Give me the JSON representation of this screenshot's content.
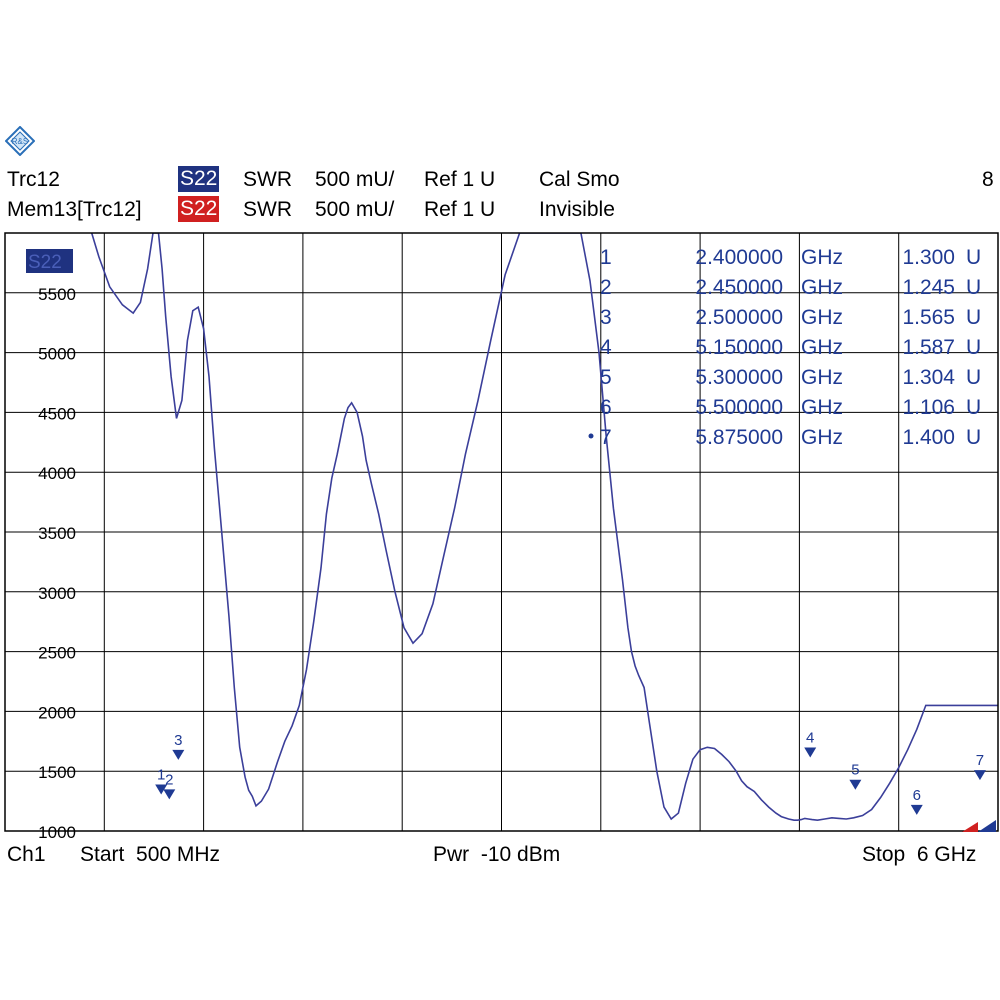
{
  "header": {
    "trace_name": "Trc12",
    "trace_tag": "S22",
    "trace_format": "SWR",
    "trace_scale": "500 mU/",
    "trace_ref": "Ref 1 U",
    "trace_status": "Cal Smo",
    "channel_count": "8",
    "mem_name": "Mem13[Trc12]",
    "mem_tag": "S22",
    "mem_format": "SWR",
    "mem_scale": "500 mU/",
    "mem_ref": "Ref 1 U",
    "mem_status": "Invisible"
  },
  "footer": {
    "channel": "Ch1",
    "start": "Start  500 MHz",
    "power": "Pwr  -10 dBm",
    "stop": "Stop  6 GHz"
  },
  "plot_tag": "S22",
  "colors": {
    "trace": "#3b3f9a",
    "marker": "#1f3a93",
    "tag_blue": "#1f3280",
    "tag_red": "#d02020",
    "grid": "#000000"
  },
  "logo_icon": "rohde-schwarz-logo-icon",
  "chart_data": {
    "type": "line",
    "x_unit": "GHz",
    "xlim": [
      0.5,
      6.0
    ],
    "ylim": [
      1000,
      6000
    ],
    "yticks": [
      {
        "value": 1000,
        "label": "1000"
      },
      {
        "value": 1500,
        "label": "1500"
      },
      {
        "value": 2000,
        "label": "2000"
      },
      {
        "value": 2500,
        "label": "2500"
      },
      {
        "value": 3000,
        "label": "3000"
      },
      {
        "value": 3500,
        "label": "3500"
      },
      {
        "value": 4000,
        "label": "4000"
      },
      {
        "value": 4500,
        "label": "4500"
      },
      {
        "value": 5000,
        "label": "5000"
      },
      {
        "value": 5500,
        "label": "5500"
      }
    ],
    "grid": true,
    "series": [
      {
        "x": [
          0.98,
          1.02,
          1.08,
          1.15,
          1.21,
          1.25,
          1.29,
          1.32,
          1.35,
          1.37,
          1.39,
          1.42,
          1.45,
          1.48,
          1.51,
          1.54,
          1.57,
          1.6,
          1.63,
          1.66,
          1.7,
          1.74,
          1.77,
          1.8,
          1.83,
          1.85,
          1.87,
          1.89,
          1.92,
          1.96,
          2.01,
          2.05,
          2.09,
          2.13,
          2.17,
          2.21,
          2.25,
          2.28,
          2.31,
          2.34,
          2.36,
          2.38,
          2.4,
          2.42,
          2.45,
          2.48,
          2.5,
          2.53,
          2.57,
          2.61,
          2.66,
          2.71,
          2.76,
          2.81,
          2.87,
          2.93,
          2.99,
          3.05,
          3.12,
          3.19,
          3.27,
          3.35,
          3.43,
          3.5,
          3.57,
          3.63,
          3.69,
          3.74,
          3.79,
          3.83,
          3.87,
          3.92,
          3.95,
          3.97,
          3.99,
          4.01,
          4.04,
          4.07,
          4.11,
          4.15,
          4.19,
          4.23,
          4.27,
          4.31,
          4.35,
          4.39,
          4.43,
          4.47,
          4.51,
          4.55,
          4.58,
          4.61,
          4.65,
          4.69,
          4.73,
          4.77,
          4.8,
          4.84,
          4.87,
          4.89,
          4.91,
          4.93,
          4.95,
          4.97,
          5.0,
          5.04,
          5.08,
          5.12,
          5.16,
          5.2,
          5.25,
          5.3,
          5.35,
          5.4,
          5.45,
          5.5,
          5.55,
          5.6,
          5.65,
          5.7,
          5.75,
          5.8,
          5.84,
          5.88,
          5.92,
          5.96,
          6.0
        ],
        "values": [
          6000,
          5800,
          5550,
          5400,
          5330,
          5420,
          5700,
          6000,
          6000,
          5700,
          5300,
          4800,
          4450,
          4600,
          5100,
          5350,
          5380,
          5200,
          4800,
          4200,
          3500,
          2800,
          2200,
          1700,
          1450,
          1340,
          1290,
          1210,
          1250,
          1350,
          1580,
          1750,
          1880,
          2050,
          2350,
          2750,
          3200,
          3650,
          3950,
          4150,
          4300,
          4450,
          4540,
          4580,
          4500,
          4300,
          4100,
          3900,
          3650,
          3350,
          3000,
          2700,
          2570,
          2650,
          2900,
          3300,
          3700,
          4150,
          4600,
          5100,
          5650,
          6000,
          6000,
          6000,
          6000,
          6000,
          6000,
          5600,
          5000,
          4300,
          3700,
          3100,
          2700,
          2500,
          2380,
          2300,
          2200,
          1900,
          1500,
          1200,
          1100,
          1150,
          1400,
          1600,
          1680,
          1700,
          1690,
          1640,
          1580,
          1500,
          1420,
          1370,
          1330,
          1260,
          1200,
          1150,
          1120,
          1100,
          1090,
          1090,
          1095,
          1105,
          1100,
          1095,
          1090,
          1100,
          1110,
          1105,
          1100,
          1110,
          1130,
          1180,
          1280,
          1400,
          1530,
          1680,
          1850,
          2050,
          2050,
          2050,
          2050,
          2050,
          2050,
          2050,
          2050,
          2050,
          2050
        ]
      }
    ],
    "markers": [
      {
        "id": "1",
        "freq": "2.400000",
        "unit": "GHz",
        "value": "1.300",
        "value_unit": "U",
        "x": 1.365,
        "y": 1330
      },
      {
        "id": "2",
        "freq": "2.450000",
        "unit": "GHz",
        "value": "1.245",
        "value_unit": "U",
        "x": 1.41,
        "y": 1290
      },
      {
        "id": "3",
        "freq": "2.500000",
        "unit": "GHz",
        "value": "1.565",
        "value_unit": "U",
        "x": 1.46,
        "y": 1620
      },
      {
        "id": "4",
        "freq": "5.150000",
        "unit": "GHz",
        "value": "1.587",
        "value_unit": "U",
        "x": 4.96,
        "y": 1640
      },
      {
        "id": "5",
        "freq": "5.300000",
        "unit": "GHz",
        "value": "1.304",
        "value_unit": "U",
        "x": 5.21,
        "y": 1370
      },
      {
        "id": "6",
        "freq": "5.500000",
        "unit": "GHz",
        "value": "1.106",
        "value_unit": "U",
        "x": 5.55,
        "y": 1160
      },
      {
        "id": "7",
        "freq": "5.875000",
        "unit": "GHz",
        "value": "1.400",
        "value_unit": "U",
        "x": 5.9,
        "y": 1450
      }
    ]
  }
}
